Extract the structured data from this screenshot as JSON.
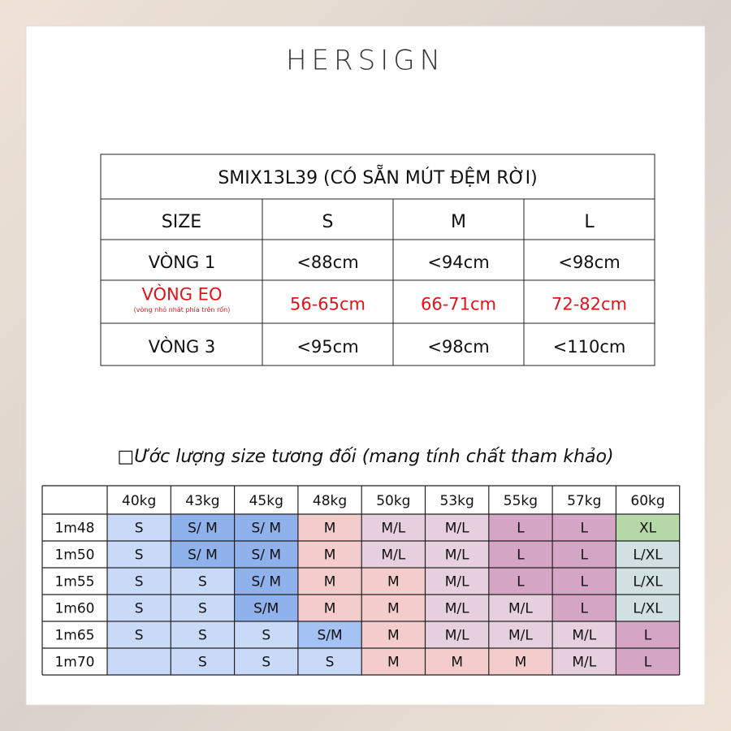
{
  "header": {
    "brand": "HERSIGN"
  },
  "sizing_chart": {
    "title": "SMIX13L39 (CÓ SẴN MÚT ĐỆM RỜI)",
    "header": [
      "SIZE",
      "S",
      "M",
      "L"
    ],
    "rows": [
      {
        "label": "VÒNG 1",
        "values": [
          "<88cm",
          "<94cm",
          "<98cm"
        ]
      },
      {
        "label": "VÒNG EO",
        "note": "(vòng nhỏ nhất phía trên rốn)",
        "values": [
          "56-65cm",
          "66-71cm",
          "72-82cm"
        ],
        "color": "#e0141a"
      },
      {
        "label": "VÒNG 3",
        "values": [
          "<95cm",
          "<98cm",
          "<110cm"
        ]
      }
    ]
  },
  "estimate": {
    "heading": "□Ước lượng size tương đối (mang tính chất tham khảo)",
    "columns": [
      "40kg",
      "43kg",
      "45kg",
      "48kg",
      "50kg",
      "53kg",
      "55kg",
      "57kg",
      "60kg"
    ],
    "rows": [
      {
        "label": "1m48",
        "cells": [
          "S",
          "S/ M",
          "S/ M",
          "M",
          "M/L",
          "M/L",
          "L",
          "L",
          "XL"
        ],
        "colors": [
          "#c9daf8",
          "#8fb1ec",
          "#8fb1ec",
          "#f4cccc",
          "#e6d0df",
          "#e6d0df",
          "#d5a6c4",
          "#d5a6c4",
          "#b6d7a8"
        ]
      },
      {
        "label": "1m50",
        "cells": [
          "S",
          "S/ M",
          "S/ M",
          "M",
          "M/L",
          "M/L",
          "L",
          "L",
          "L/XL"
        ],
        "colors": [
          "#c9daf8",
          "#8fb1ec",
          "#8fb1ec",
          "#f4cccc",
          "#e6d0df",
          "#e6d0df",
          "#d5a6c4",
          "#d5a6c4",
          "#d0e0e3"
        ]
      },
      {
        "label": "1m55",
        "cells": [
          "S",
          "S",
          "S/ M",
          "M",
          "M",
          "M/L",
          "L",
          "L",
          "L/XL"
        ],
        "colors": [
          "#c9daf8",
          "#c9daf8",
          "#8fb1ec",
          "#f4cccc",
          "#f4cccc",
          "#e6d0df",
          "#d5a6c4",
          "#d5a6c4",
          "#d0e0e3"
        ]
      },
      {
        "label": "1m60",
        "cells": [
          "S",
          "S",
          "S/M",
          "M",
          "M",
          "M/L",
          "M/L",
          "L",
          "L/XL"
        ],
        "colors": [
          "#c9daf8",
          "#c9daf8",
          "#8fb1ec",
          "#f4cccc",
          "#f4cccc",
          "#e6d0df",
          "#e6d0df",
          "#d5a6c4",
          "#d0e0e3"
        ]
      },
      {
        "label": "1m65",
        "cells": [
          "S",
          "S",
          "S",
          "S/M",
          "M",
          "M/L",
          "M/L",
          "M/L",
          "L"
        ],
        "colors": [
          "#c9daf8",
          "#c9daf8",
          "#c9daf8",
          "#a4c2f4",
          "#f4cccc",
          "#e6d0df",
          "#e6d0df",
          "#e6d0df",
          "#d5a6c4"
        ]
      },
      {
        "label": "1m70",
        "cells": [
          null,
          "S",
          "S",
          "S",
          "M",
          "M",
          "M",
          "M/L",
          "L"
        ],
        "colors": [
          "#c9daf8",
          "#c9daf8",
          "#c9daf8",
          "#c9daf8",
          "#f4cccc",
          "#f4cccc",
          "#f4cccc",
          "#e6d0df",
          "#d5a6c4"
        ]
      }
    ]
  }
}
